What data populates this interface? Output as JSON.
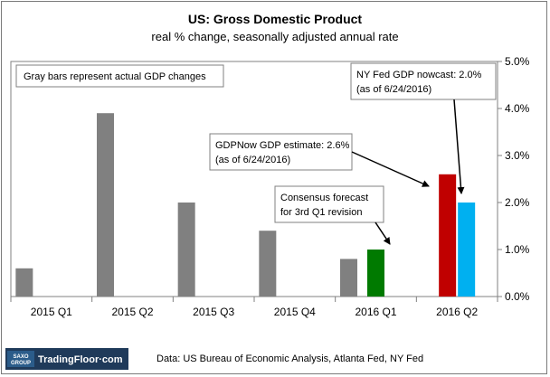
{
  "chart_data": {
    "type": "bar",
    "title": "US: Gross Domestic Product",
    "subtitle": "real % change, seasonally adjusted annual rate",
    "categories": [
      "2015 Q1",
      "2015 Q2",
      "2015 Q3",
      "2015 Q4",
      "2016 Q1",
      "2016 Q2"
    ],
    "series": [
      {
        "name": "Actual GDP change",
        "color": "#808080",
        "values": [
          0.6,
          3.9,
          2.0,
          1.4,
          0.8,
          null
        ]
      },
      {
        "name": "Consensus forecast",
        "color": "#007a00",
        "values": [
          null,
          null,
          null,
          null,
          1.0,
          null
        ]
      },
      {
        "name": "GDPNow GDP estimate",
        "color": "#c00000",
        "values": [
          null,
          null,
          null,
          null,
          null,
          2.6
        ]
      },
      {
        "name": "NY Fed GDP nowcast",
        "color": "#00b0f0",
        "values": [
          null,
          null,
          null,
          null,
          null,
          2.0
        ]
      }
    ],
    "ylim": [
      0,
      5
    ],
    "yticks": [
      "0.0%",
      "1.0%",
      "2.0%",
      "3.0%",
      "4.0%",
      "5.0%"
    ],
    "xlabel": "",
    "ylabel": "",
    "annotations": {
      "legend_note": "Gray bars represent actual GDP changes",
      "nyfed_line1": "NY Fed GDP nowcast: 2.0%",
      "nyfed_line2": "(as of 6/24/2016)",
      "gdpnow_line1": "GDPNow GDP estimate: 2.6%",
      "gdpnow_line2": "(as of 6/24/2016)",
      "consensus_line1": "Consensus forecast",
      "consensus_line2": "for 3rd Q1 revision"
    }
  },
  "footer": {
    "source": "Data: US Bureau of Economic Analysis, Atlanta Fed, NY Fed",
    "logo_badge_top": "SAXO",
    "logo_badge_bottom": "GROUP",
    "logo_text": "TradingFloor·com"
  },
  "colors": {
    "logo_bg": "#1f3a5a",
    "logo_badge": "#2b5c8a",
    "axis": "#808080"
  }
}
